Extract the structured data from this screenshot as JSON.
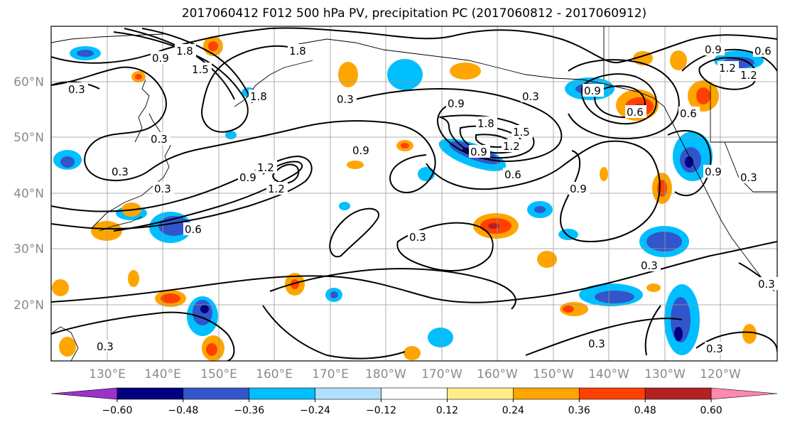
{
  "title": "2017060412 F012 500 hPa PV, precipitation PC (2017060812 - 2017060912)",
  "lat_labels": [
    "60°N",
    "50°N",
    "40°N",
    "30°N",
    "20°N"
  ],
  "lon_labels": [
    "130°E",
    "140°E",
    "150°E",
    "160°E",
    "170°E",
    "180°W",
    "170°W",
    "160°W",
    "150°W",
    "140°W",
    "130°W",
    "120°W"
  ],
  "colorbar": {
    "colors": [
      "#9933cc",
      "#000080",
      "#3355cc",
      "#00bfff",
      "#b0e0ff",
      "#ffffff",
      "#ffee88",
      "#ffa500",
      "#ff4000",
      "#b22222",
      "#ff88b0"
    ],
    "tick_labels": [
      "-0.60",
      "-0.48",
      "-0.36",
      "-0.24",
      "-0.12",
      "0.12",
      "0.24",
      "0.36",
      "0.48",
      "0.60"
    ]
  },
  "contour_labels": [
    "1.8",
    "0.9",
    "1.5",
    "1.8",
    "0.3",
    "1.8",
    "0.3",
    "0.9",
    "1.8",
    "1.5",
    "1.2",
    "0.9",
    "0.3",
    "0.9",
    "0.9",
    "0.6",
    "0.3",
    "0.3",
    "0.9",
    "1.2",
    "0.6",
    "0.3",
    "0.9",
    "0.6",
    "0.3",
    "0.3",
    "0.3",
    "0.3",
    "0.9",
    "1.2",
    "0.6",
    "0.3",
    "0.3",
    "0.6",
    "0.9",
    "1.2",
    "1.2",
    "0.3"
  ]
}
